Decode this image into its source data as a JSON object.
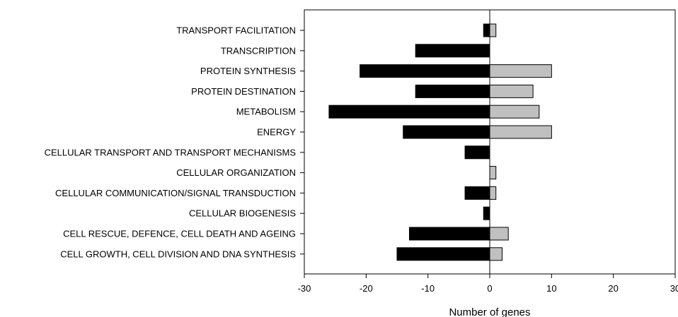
{
  "chart_data": {
    "type": "bar",
    "orientation": "horizontal",
    "xlabel": "Number of genes",
    "ylabel": "",
    "title": "",
    "xlim": [
      -30,
      30
    ],
    "xticks": [
      -30,
      -20,
      -10,
      0,
      10,
      20,
      30
    ],
    "grid": false,
    "categories": [
      "TRANSPORT FACILITATION",
      "TRANSCRIPTION",
      "PROTEIN SYNTHESIS",
      "PROTEIN DESTINATION",
      "METABOLISM",
      "ENERGY",
      "CELLULAR TRANSPORT AND TRANSPORT MECHANISMS",
      "CELLULAR ORGANIZATION",
      "CELLULAR COMMUNICATION/SIGNAL TRANSDUCTION",
      "CELLULAR BIOGENESIS",
      "CELL RESCUE, DEFENCE, CELL DEATH AND AGEING",
      "CELL GROWTH, CELL DIVISION AND DNA SYNTHESIS"
    ],
    "series": [
      {
        "color": "#000000",
        "values": [
          -1,
          -12,
          -21,
          -12,
          -26,
          -14,
          -4,
          0,
          -4,
          -1,
          -13,
          -15
        ]
      },
      {
        "color": "#c0c0c0",
        "values": [
          1,
          0,
          10,
          7,
          8,
          10,
          0,
          1,
          1,
          0,
          3,
          2
        ]
      }
    ]
  }
}
